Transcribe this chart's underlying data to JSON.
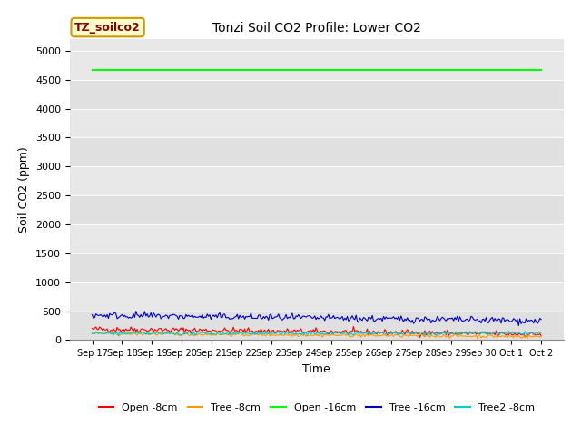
{
  "title": "Tonzi Soil CO2 Profile: Lower CO2",
  "xlabel": "Time",
  "ylabel": "Soil CO2 (ppm)",
  "ylim": [
    0,
    5200
  ],
  "yticks": [
    0,
    500,
    1000,
    1500,
    2000,
    2500,
    3000,
    3500,
    4000,
    4500,
    5000
  ],
  "background_color": "#e8e8e8",
  "fig_background": "#ffffff",
  "annotation_text": "TZ_soilco2",
  "annotation_bg": "#ffffcc",
  "annotation_border": "#cc9900",
  "annotation_text_color": "#880000",
  "n_points": 360,
  "open_8cm_base": 190,
  "open_8cm_amp": 25,
  "open_8cm_trend": -90,
  "tree_8cm_base": 115,
  "tree_8cm_amp": 15,
  "tree_8cm_trend": -55,
  "open_16cm_value": 4670,
  "tree_16cm_base": 430,
  "tree_16cm_amp": 30,
  "tree_16cm_trend": -100,
  "tree2_8cm_base": 115,
  "tree2_8cm_amp": 15,
  "tree2_8cm_trend": 5,
  "colors": {
    "open_8cm": "#ff0000",
    "tree_8cm": "#ff9900",
    "open_16cm": "#00ff00",
    "tree_16cm": "#0000cc",
    "tree2_8cm": "#00cccc"
  },
  "x_tick_labels": [
    "Sep 17",
    "Sep 18",
    "Sep 19",
    "Sep 20",
    "Sep 21",
    "Sep 22",
    "Sep 23",
    "Sep 24",
    "Sep 25",
    "Sep 26",
    "Sep 27",
    "Sep 28",
    "Sep 29",
    "Sep 30",
    "Oct 1",
    "Oct 2"
  ],
  "legend_labels": [
    "Open -8cm",
    "Tree -8cm",
    "Open -16cm",
    "Tree -16cm",
    "Tree2 -8cm"
  ],
  "band_colors": [
    "#e0e0e0",
    "#e8e8e8"
  ]
}
